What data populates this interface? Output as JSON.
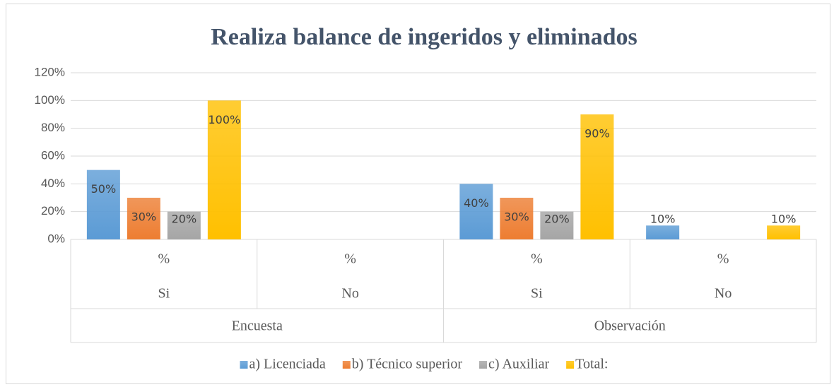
{
  "chart_data": {
    "type": "bar",
    "title": "Realiza balance de ingeridos y eliminados",
    "categories": [
      "%",
      "%",
      "%",
      "%"
    ],
    "subcategories": [
      "Si",
      "No",
      "Si",
      "No"
    ],
    "groups": [
      "Encuesta",
      "Observación"
    ],
    "series": [
      {
        "name": "a) Licenciada",
        "color": "#5b9bd5",
        "values": [
          50,
          null,
          40,
          10
        ],
        "value_labels": [
          "50%",
          null,
          "40%",
          "10%"
        ]
      },
      {
        "name": "b) Técnico superior",
        "color": "#ed7d31",
        "values": [
          30,
          null,
          30,
          null
        ],
        "value_labels": [
          "30%",
          null,
          "30%",
          null
        ]
      },
      {
        "name": "c) Auxiliar",
        "color": "#a5a5a5",
        "values": [
          20,
          null,
          20,
          null
        ],
        "value_labels": [
          "20%",
          null,
          "20%",
          null
        ]
      },
      {
        "name": "Total:",
        "color": "#ffc000",
        "values": [
          100,
          null,
          90,
          10
        ],
        "value_labels": [
          "100%",
          null,
          "90%",
          "10%"
        ]
      }
    ],
    "ylim": [
      0,
      120
    ],
    "yticks": [
      {
        "value": 0,
        "label": "0%"
      },
      {
        "value": 20,
        "label": "20%"
      },
      {
        "value": 40,
        "label": "40%"
      },
      {
        "value": 60,
        "label": "60%"
      },
      {
        "value": 80,
        "label": "80%"
      },
      {
        "value": 100,
        "label": "100%"
      },
      {
        "value": 120,
        "label": "120%"
      }
    ],
    "grid": true,
    "legend": "bottom"
  }
}
